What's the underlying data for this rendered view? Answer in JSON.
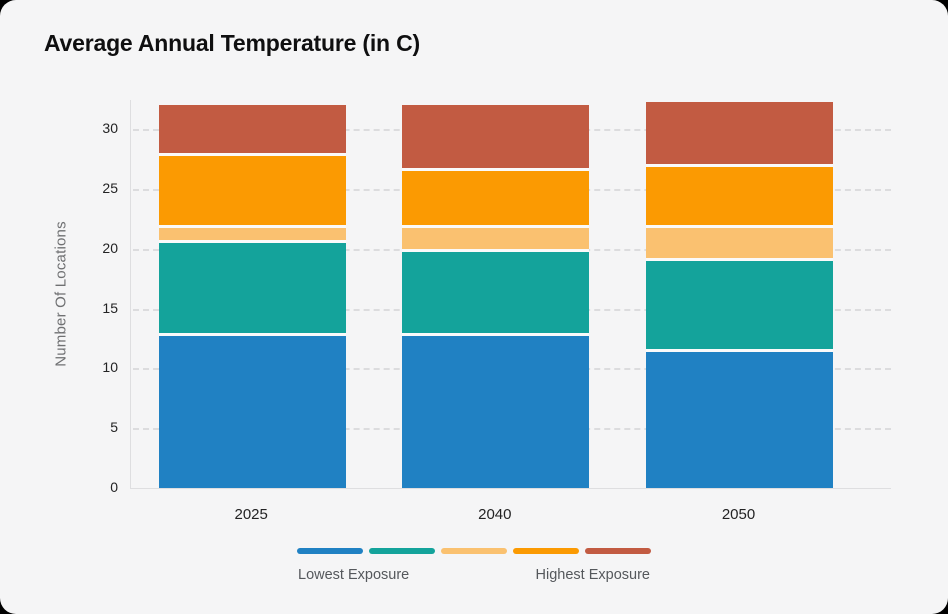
{
  "page": {
    "background_color": "#000000",
    "card_background_color": "#f5f5f6"
  },
  "header": {
    "title": "Average Annual Temperature (in C)"
  },
  "chart_data": {
    "type": "bar",
    "stacked": true,
    "title": "Average Annual Temperature (in C)",
    "xlabel": "",
    "ylabel": "Number Of Locations",
    "categories": [
      "2025",
      "2040",
      "2050"
    ],
    "series": [
      {
        "name": "exposure-level-1-lowest",
        "color": "#2081C3",
        "values": [
          13.0,
          13.0,
          11.6
        ]
      },
      {
        "name": "exposure-level-2",
        "color": "#14A39B",
        "values": [
          7.7,
          7.0,
          7.6
        ]
      },
      {
        "name": "exposure-level-3",
        "color": "#FAC170",
        "values": [
          1.3,
          2.0,
          2.8
        ]
      },
      {
        "name": "exposure-level-4",
        "color": "#FB9A02",
        "values": [
          6.0,
          4.8,
          5.1
        ]
      },
      {
        "name": "exposure-level-5-highest",
        "color": "#C25B42",
        "values": [
          4.0,
          5.2,
          5.2
        ]
      }
    ],
    "totals": [
      32.0,
      32.0,
      32.3
    ],
    "yticks": [
      0,
      5,
      10,
      15,
      20,
      25,
      30
    ],
    "ylim": [
      0,
      32.45
    ],
    "grid": "dashed-horizontal",
    "legend_position": "bottom-center",
    "grid_color": "#dcdcde",
    "axis_color": "#dedee0"
  },
  "legend": {
    "left_label": "Lowest Exposure",
    "right_label": "Highest Exposure"
  }
}
